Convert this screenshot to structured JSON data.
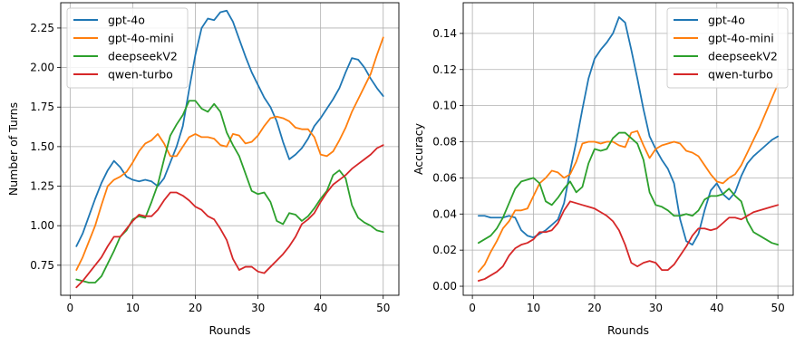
{
  "chart_data": [
    {
      "type": "line",
      "title": "",
      "xlabel": "Rounds",
      "ylabel": "Number of Turns",
      "xlim": [
        -1.5,
        52.5
      ],
      "ylim": [
        0.56,
        2.41
      ],
      "xticks": [
        0,
        10,
        20,
        30,
        40,
        50
      ],
      "yticks": [
        0.75,
        1.0,
        1.25,
        1.5,
        1.75,
        2.0,
        2.25
      ],
      "ytick_labels": [
        "0.75",
        "1.00",
        "1.25",
        "1.50",
        "1.75",
        "2.00",
        "2.25"
      ],
      "grid": true,
      "legend_position": "upper-left",
      "x": [
        1,
        2,
        3,
        4,
        5,
        6,
        7,
        8,
        9,
        10,
        11,
        12,
        13,
        14,
        15,
        16,
        17,
        18,
        19,
        20,
        21,
        22,
        23,
        24,
        25,
        26,
        27,
        28,
        29,
        30,
        31,
        32,
        33,
        34,
        35,
        36,
        37,
        38,
        39,
        40,
        41,
        42,
        43,
        44,
        45,
        46,
        47,
        48,
        49,
        50
      ],
      "series": [
        {
          "name": "gpt-4o",
          "color": "#1f77b4",
          "values": [
            0.87,
            0.95,
            1.06,
            1.17,
            1.27,
            1.35,
            1.41,
            1.37,
            1.31,
            1.29,
            1.28,
            1.29,
            1.28,
            1.25,
            1.3,
            1.4,
            1.5,
            1.63,
            1.86,
            2.08,
            2.25,
            2.31,
            2.3,
            2.35,
            2.36,
            2.29,
            2.18,
            2.07,
            1.97,
            1.89,
            1.81,
            1.75,
            1.66,
            1.53,
            1.42,
            1.45,
            1.49,
            1.55,
            1.63,
            1.68,
            1.74,
            1.8,
            1.87,
            1.97,
            2.06,
            2.05,
            2.0,
            1.93,
            1.87,
            1.82
          ]
        },
        {
          "name": "gpt-4o-mini",
          "color": "#ff7f0e",
          "values": [
            0.72,
            0.8,
            0.9,
            1.0,
            1.13,
            1.25,
            1.29,
            1.31,
            1.34,
            1.4,
            1.47,
            1.52,
            1.54,
            1.58,
            1.52,
            1.44,
            1.44,
            1.5,
            1.56,
            1.58,
            1.56,
            1.56,
            1.55,
            1.51,
            1.5,
            1.58,
            1.57,
            1.52,
            1.53,
            1.57,
            1.63,
            1.68,
            1.69,
            1.68,
            1.66,
            1.62,
            1.61,
            1.61,
            1.56,
            1.45,
            1.44,
            1.47,
            1.54,
            1.62,
            1.72,
            1.8,
            1.88,
            1.96,
            2.08,
            2.19
          ]
        },
        {
          "name": "deepseekV2",
          "color": "#2ca02c",
          "values": [
            0.66,
            0.65,
            0.64,
            0.64,
            0.68,
            0.76,
            0.84,
            0.93,
            0.97,
            1.04,
            1.06,
            1.05,
            1.15,
            1.26,
            1.42,
            1.57,
            1.64,
            1.7,
            1.79,
            1.79,
            1.74,
            1.72,
            1.77,
            1.72,
            1.59,
            1.51,
            1.44,
            1.33,
            1.22,
            1.2,
            1.21,
            1.15,
            1.03,
            1.01,
            1.08,
            1.07,
            1.03,
            1.06,
            1.11,
            1.17,
            1.22,
            1.32,
            1.35,
            1.3,
            1.13,
            1.05,
            1.02,
            1.0,
            0.97,
            0.96
          ]
        },
        {
          "name": "qwen-turbo",
          "color": "#d62728",
          "values": [
            0.61,
            0.65,
            0.7,
            0.75,
            0.8,
            0.87,
            0.93,
            0.93,
            0.98,
            1.03,
            1.07,
            1.06,
            1.06,
            1.1,
            1.16,
            1.21,
            1.21,
            1.19,
            1.16,
            1.12,
            1.1,
            1.06,
            1.04,
            0.98,
            0.91,
            0.79,
            0.72,
            0.74,
            0.74,
            0.71,
            0.7,
            0.74,
            0.78,
            0.82,
            0.87,
            0.93,
            1.01,
            1.04,
            1.08,
            1.15,
            1.21,
            1.26,
            1.29,
            1.32,
            1.36,
            1.39,
            1.42,
            1.45,
            1.49,
            1.51
          ]
        }
      ]
    },
    {
      "type": "line",
      "title": "",
      "xlabel": "Rounds",
      "ylabel": "Accuracy",
      "xlim": [
        -1.5,
        52.5
      ],
      "ylim": [
        -0.005,
        0.157
      ],
      "xticks": [
        0,
        10,
        20,
        30,
        40,
        50
      ],
      "yticks": [
        0.0,
        0.02,
        0.04,
        0.06,
        0.08,
        0.1,
        0.12,
        0.14
      ],
      "ytick_labels": [
        "0.00",
        "0.02",
        "0.04",
        "0.06",
        "0.08",
        "0.10",
        "0.12",
        "0.14"
      ],
      "grid": true,
      "legend_position": "upper-right",
      "x": [
        1,
        2,
        3,
        4,
        5,
        6,
        7,
        8,
        9,
        10,
        11,
        12,
        13,
        14,
        15,
        16,
        17,
        18,
        19,
        20,
        21,
        22,
        23,
        24,
        25,
        26,
        27,
        28,
        29,
        30,
        31,
        32,
        33,
        34,
        35,
        36,
        37,
        38,
        39,
        40,
        41,
        42,
        43,
        44,
        45,
        46,
        47,
        48,
        49,
        50
      ],
      "series": [
        {
          "name": "gpt-4o",
          "color": "#1f77b4",
          "values": [
            0.039,
            0.039,
            0.038,
            0.038,
            0.038,
            0.039,
            0.038,
            0.031,
            0.028,
            0.027,
            0.029,
            0.031,
            0.034,
            0.037,
            0.046,
            0.064,
            0.08,
            0.098,
            0.115,
            0.126,
            0.131,
            0.135,
            0.14,
            0.149,
            0.146,
            0.131,
            0.115,
            0.098,
            0.083,
            0.076,
            0.07,
            0.065,
            0.057,
            0.037,
            0.025,
            0.023,
            0.029,
            0.042,
            0.053,
            0.057,
            0.051,
            0.048,
            0.052,
            0.061,
            0.068,
            0.072,
            0.075,
            0.078,
            0.081,
            0.083
          ]
        },
        {
          "name": "gpt-4o-mini",
          "color": "#ff7f0e",
          "values": [
            0.008,
            0.012,
            0.019,
            0.025,
            0.032,
            0.036,
            0.042,
            0.042,
            0.043,
            0.05,
            0.057,
            0.06,
            0.064,
            0.063,
            0.06,
            0.062,
            0.069,
            0.079,
            0.08,
            0.08,
            0.079,
            0.08,
            0.08,
            0.078,
            0.077,
            0.085,
            0.086,
            0.078,
            0.071,
            0.076,
            0.078,
            0.079,
            0.08,
            0.079,
            0.075,
            0.074,
            0.072,
            0.067,
            0.062,
            0.058,
            0.057,
            0.06,
            0.062,
            0.067,
            0.074,
            0.081,
            0.088,
            0.096,
            0.104,
            0.112
          ]
        },
        {
          "name": "deepseekV2",
          "color": "#2ca02c",
          "values": [
            0.024,
            0.026,
            0.028,
            0.032,
            0.038,
            0.046,
            0.054,
            0.058,
            0.059,
            0.06,
            0.057,
            0.047,
            0.045,
            0.049,
            0.054,
            0.058,
            0.052,
            0.055,
            0.068,
            0.076,
            0.075,
            0.076,
            0.082,
            0.085,
            0.085,
            0.082,
            0.079,
            0.07,
            0.052,
            0.045,
            0.044,
            0.042,
            0.039,
            0.039,
            0.04,
            0.039,
            0.042,
            0.048,
            0.05,
            0.05,
            0.051,
            0.054,
            0.05,
            0.047,
            0.036,
            0.03,
            0.028,
            0.026,
            0.024,
            0.023
          ]
        },
        {
          "name": "qwen-turbo",
          "color": "#d62728",
          "values": [
            0.003,
            0.004,
            0.006,
            0.008,
            0.011,
            0.017,
            0.021,
            0.023,
            0.024,
            0.026,
            0.03,
            0.03,
            0.031,
            0.035,
            0.042,
            0.047,
            0.046,
            0.045,
            0.044,
            0.043,
            0.041,
            0.039,
            0.036,
            0.031,
            0.023,
            0.013,
            0.011,
            0.013,
            0.014,
            0.013,
            0.009,
            0.009,
            0.012,
            0.017,
            0.022,
            0.028,
            0.032,
            0.032,
            0.031,
            0.032,
            0.035,
            0.038,
            0.038,
            0.037,
            0.039,
            0.041,
            0.042,
            0.043,
            0.044,
            0.045
          ]
        }
      ]
    }
  ]
}
